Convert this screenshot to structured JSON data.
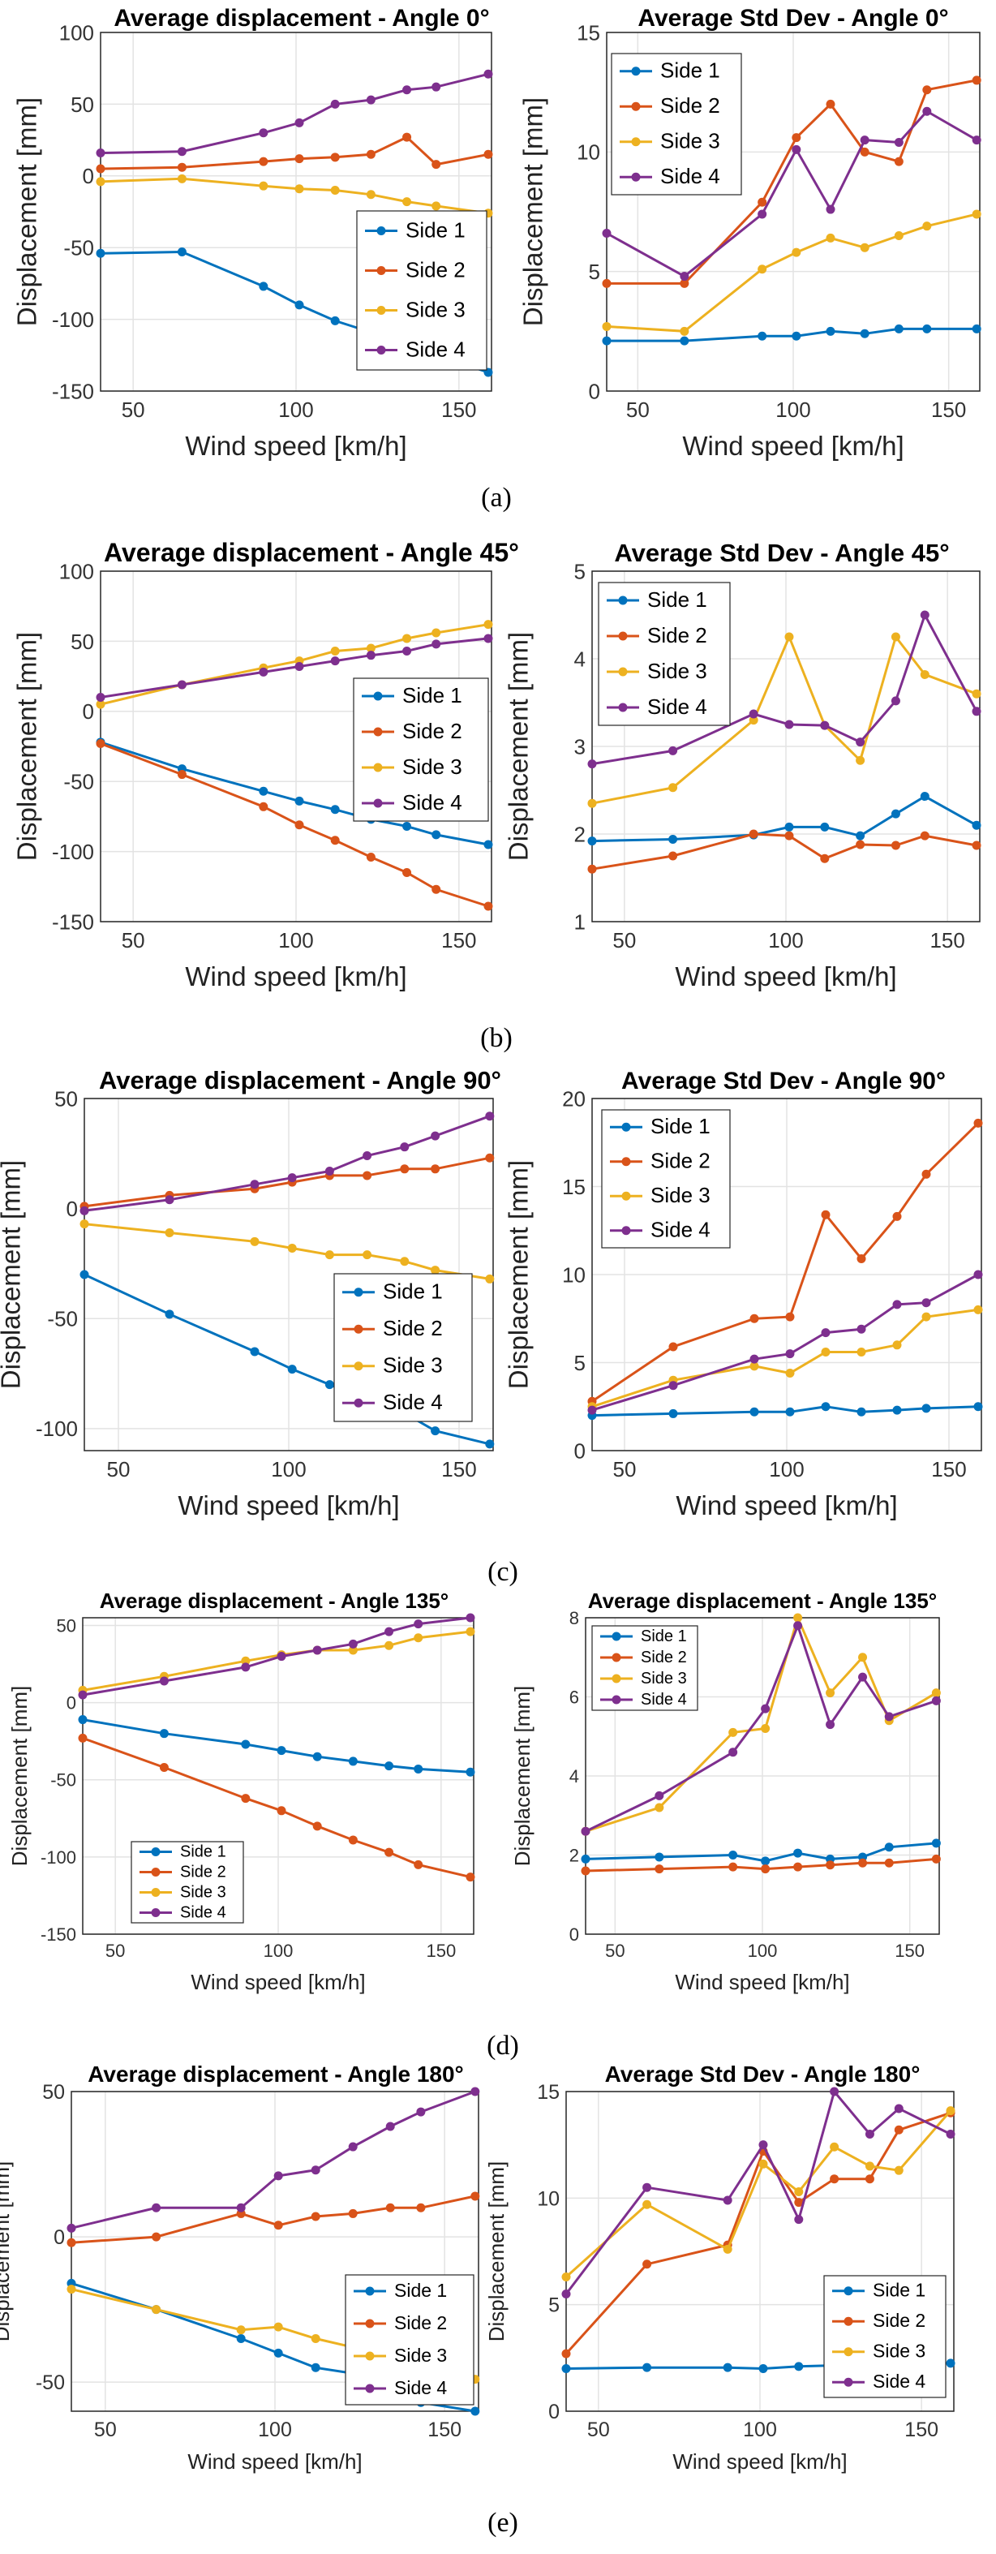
{
  "colors": {
    "Side 1": "#0072BD",
    "Side 2": "#D95319",
    "Side 3": "#EDB120",
    "Side 4": "#7E2F8E"
  },
  "captions": [
    "(a)",
    "(b)",
    "(c)",
    "(d)",
    "(e)"
  ],
  "chart_data": [
    {
      "type": "line",
      "title": "Average displacement - Angle 0°",
      "xlabel": "Wind speed [km/h]",
      "ylabel": "Displacement [mm]",
      "xlim": [
        40,
        160
      ],
      "ylim": [
        -150,
        100
      ],
      "xticks": [
        50,
        100,
        150
      ],
      "yticks": [
        -150,
        -100,
        -50,
        0,
        50,
        100
      ],
      "legend_position": "bottom-right",
      "grid": true,
      "x": [
        40,
        65,
        90,
        101,
        112,
        123,
        134,
        143,
        159
      ],
      "series": [
        {
          "name": "Side 1",
          "values": [
            -54,
            -53,
            -77,
            -90,
            -101,
            -109,
            -116,
            -125,
            -137
          ]
        },
        {
          "name": "Side 2",
          "values": [
            5,
            6,
            10,
            12,
            13,
            15,
            27,
            8,
            15
          ]
        },
        {
          "name": "Side 3",
          "values": [
            -4,
            -2,
            -7,
            -9,
            -10,
            -13,
            -18,
            -21,
            -26
          ]
        },
        {
          "name": "Side 4",
          "values": [
            16,
            17,
            30,
            37,
            50,
            53,
            60,
            62,
            71
          ]
        }
      ]
    },
    {
      "type": "line",
      "title": "Average Std Dev - Angle 0°",
      "xlabel": "Wind speed [km/h]",
      "ylabel": "Displacement [mm]",
      "xlim": [
        40,
        160
      ],
      "ylim": [
        0,
        15
      ],
      "xticks": [
        50,
        100,
        150
      ],
      "yticks": [
        0,
        5,
        10,
        15
      ],
      "legend_position": "top-left",
      "grid": true,
      "x": [
        40,
        65,
        90,
        101,
        112,
        123,
        134,
        143,
        159
      ],
      "series": [
        {
          "name": "Side 1",
          "values": [
            2.1,
            2.1,
            2.3,
            2.3,
            2.5,
            2.4,
            2.6,
            2.6,
            2.6
          ]
        },
        {
          "name": "Side 2",
          "values": [
            4.5,
            4.5,
            7.9,
            10.6,
            12,
            10,
            9.6,
            12.6,
            13
          ]
        },
        {
          "name": "Side 3",
          "values": [
            2.7,
            2.5,
            5.1,
            5.8,
            6.4,
            6,
            6.5,
            6.9,
            7.4
          ]
        },
        {
          "name": "Side 4",
          "values": [
            6.6,
            4.8,
            7.4,
            10.1,
            7.6,
            10.5,
            10.4,
            11.7,
            10.5
          ]
        }
      ]
    },
    {
      "type": "line",
      "title": "Average displacement - Angle 45°",
      "xlabel": "Wind speed [km/h]",
      "ylabel": "Displacement [mm]",
      "xlim": [
        40,
        160
      ],
      "ylim": [
        -150,
        100
      ],
      "xticks": [
        50,
        100,
        150
      ],
      "yticks": [
        -150,
        -100,
        -50,
        0,
        50,
        100
      ],
      "legend_position": "center-right",
      "grid": true,
      "x": [
        40,
        65,
        90,
        101,
        112,
        123,
        134,
        143,
        159
      ],
      "series": [
        {
          "name": "Side 1",
          "values": [
            -22,
            -41,
            -57,
            -64,
            -70,
            -77,
            -82,
            -88,
            -95
          ]
        },
        {
          "name": "Side 2",
          "values": [
            -23,
            -45,
            -68,
            -81,
            -92,
            -104,
            -115,
            -127,
            -139
          ]
        },
        {
          "name": "Side 3",
          "values": [
            5,
            19,
            31,
            36,
            43,
            45,
            52,
            56,
            62
          ]
        },
        {
          "name": "Side 4",
          "values": [
            10,
            19,
            28,
            32,
            36,
            40,
            43,
            48,
            52
          ]
        }
      ]
    },
    {
      "type": "line",
      "title": "Average Std Dev - Angle 45°",
      "xlabel": "Wind speed [km/h]",
      "ylabel": "Displacement [mm]",
      "xlim": [
        40,
        160
      ],
      "ylim": [
        1,
        5
      ],
      "xticks": [
        50,
        100,
        150
      ],
      "yticks": [
        1,
        2,
        3,
        4,
        5
      ],
      "legend_position": "top-left",
      "grid": true,
      "x": [
        40,
        65,
        90,
        101,
        112,
        123,
        134,
        143,
        159
      ],
      "series": [
        {
          "name": "Side 1",
          "values": [
            1.92,
            1.94,
            1.99,
            2.08,
            2.08,
            1.98,
            2.23,
            2.43,
            2.1
          ]
        },
        {
          "name": "Side 2",
          "values": [
            1.6,
            1.75,
            2.0,
            1.98,
            1.72,
            1.88,
            1.87,
            1.98,
            1.87
          ]
        },
        {
          "name": "Side 3",
          "values": [
            2.35,
            2.53,
            3.3,
            4.25,
            3.24,
            2.84,
            4.25,
            3.82,
            3.6
          ]
        },
        {
          "name": "Side 4",
          "values": [
            2.8,
            2.95,
            3.37,
            3.25,
            3.24,
            3.05,
            3.52,
            4.5,
            3.4
          ]
        }
      ]
    },
    {
      "type": "line",
      "title": "Average displacement - Angle 90°",
      "xlabel": "Wind speed [km/h]",
      "ylabel": "Displacement [mm]",
      "xlim": [
        40,
        160
      ],
      "ylim": [
        -110,
        50
      ],
      "xticks": [
        50,
        100,
        150
      ],
      "yticks": [
        -100,
        -50,
        0,
        50
      ],
      "legend_position": "bottom-right",
      "grid": true,
      "x": [
        40,
        65,
        90,
        101,
        112,
        123,
        134,
        143,
        159
      ],
      "series": [
        {
          "name": "Side 1",
          "values": [
            -30,
            -48,
            -65,
            -73,
            -80,
            -87,
            -93,
            -101,
            -107
          ]
        },
        {
          "name": "Side 2",
          "values": [
            1,
            6,
            9,
            12,
            15,
            15,
            18,
            18,
            23
          ]
        },
        {
          "name": "Side 3",
          "values": [
            -7,
            -11,
            -15,
            -18,
            -21,
            -21,
            -24,
            -28,
            -32
          ]
        },
        {
          "name": "Side 4",
          "values": [
            -1,
            4,
            11,
            14,
            17,
            24,
            28,
            33,
            42
          ]
        }
      ]
    },
    {
      "type": "line",
      "title": "Average Std Dev - Angle 90°",
      "xlabel": "Wind speed [km/h]",
      "ylabel": "Displacement [mm]",
      "xlim": [
        40,
        160
      ],
      "ylim": [
        0,
        20
      ],
      "xticks": [
        50,
        100,
        150
      ],
      "yticks": [
        0,
        5,
        10,
        15,
        20
      ],
      "legend_position": "top-left",
      "grid": true,
      "x": [
        40,
        65,
        90,
        101,
        112,
        123,
        134,
        143,
        159
      ],
      "series": [
        {
          "name": "Side 1",
          "values": [
            2.0,
            2.1,
            2.2,
            2.2,
            2.5,
            2.2,
            2.3,
            2.4,
            2.5
          ]
        },
        {
          "name": "Side 2",
          "values": [
            2.8,
            5.9,
            7.5,
            7.6,
            13.4,
            10.9,
            13.3,
            15.7,
            18.6
          ]
        },
        {
          "name": "Side 3",
          "values": [
            2.5,
            4.0,
            4.8,
            4.4,
            5.6,
            5.6,
            6.0,
            7.6,
            8.0
          ]
        },
        {
          "name": "Side 4",
          "values": [
            2.3,
            3.7,
            5.2,
            5.5,
            6.7,
            6.9,
            8.3,
            8.4,
            10
          ]
        }
      ]
    },
    {
      "type": "line",
      "title": "Average displacement - Angle 135°",
      "xlabel": "Wind speed [km/h]",
      "ylabel": "Displacement [mm]",
      "xlim": [
        40,
        160
      ],
      "ylim": [
        -150,
        55
      ],
      "xticks": [
        50,
        100,
        150
      ],
      "yticks": [
        -150,
        -100,
        -50,
        0,
        50
      ],
      "legend_position": "bottom-left",
      "grid": true,
      "x": [
        40,
        65,
        90,
        101,
        112,
        123,
        134,
        143,
        159
      ],
      "series": [
        {
          "name": "Side 1",
          "values": [
            -11,
            -20,
            -27,
            -31,
            -35,
            -38,
            -41,
            -43,
            -45
          ]
        },
        {
          "name": "Side 2",
          "values": [
            -23,
            -42,
            -62,
            -70,
            -80,
            -89,
            -97,
            -105,
            -113
          ]
        },
        {
          "name": "Side 3",
          "values": [
            8,
            17,
            27,
            31,
            34,
            34,
            37,
            42,
            46
          ]
        },
        {
          "name": "Side 4",
          "values": [
            5,
            14,
            23,
            30,
            34,
            38,
            46,
            51,
            55
          ]
        }
      ]
    },
    {
      "type": "line",
      "title": "Average displacement - Angle 135°",
      "xlabel": "Wind speed [km/h]",
      "ylabel": "Displacement [mm]",
      "xlim": [
        40,
        160
      ],
      "ylim": [
        0,
        8
      ],
      "xticks": [
        50,
        100,
        150
      ],
      "yticks": [
        0,
        2,
        4,
        6,
        8
      ],
      "legend_position": "top-left",
      "grid": true,
      "x": [
        40,
        65,
        90,
        101,
        112,
        123,
        134,
        143,
        159
      ],
      "series": [
        {
          "name": "Side 1",
          "values": [
            1.9,
            1.95,
            2.0,
            1.85,
            2.05,
            1.9,
            1.95,
            2.2,
            2.3
          ]
        },
        {
          "name": "Side 2",
          "values": [
            1.6,
            1.65,
            1.7,
            1.65,
            1.7,
            1.75,
            1.8,
            1.8,
            1.9
          ]
        },
        {
          "name": "Side 3",
          "values": [
            2.6,
            3.2,
            5.1,
            5.2,
            8.0,
            6.1,
            7.0,
            5.4,
            6.1
          ]
        },
        {
          "name": "Side 4",
          "values": [
            2.6,
            3.5,
            4.6,
            5.7,
            7.8,
            5.3,
            6.5,
            5.5,
            5.9
          ]
        }
      ]
    },
    {
      "type": "line",
      "title": "Average displacement - Angle 180°",
      "xlabel": "Wind speed [km/h]",
      "ylabel": "Displacement [mm]",
      "xlim": [
        40,
        160
      ],
      "ylim": [
        -60,
        50
      ],
      "xticks": [
        50,
        100,
        150
      ],
      "yticks": [
        -50,
        0,
        50
      ],
      "legend_position": "bottom-right",
      "grid": true,
      "x": [
        40,
        65,
        90,
        101,
        112,
        123,
        134,
        143,
        159
      ],
      "series": [
        {
          "name": "Side 1",
          "values": [
            -16,
            -25,
            -35,
            -40,
            -45,
            -47,
            -53,
            -57,
            -60
          ]
        },
        {
          "name": "Side 2",
          "values": [
            -2,
            0,
            8,
            4,
            7,
            8,
            10,
            10,
            14
          ]
        },
        {
          "name": "Side 3",
          "values": [
            -18,
            -25,
            -32,
            -31,
            -35,
            -38,
            -42,
            -45,
            -49
          ]
        },
        {
          "name": "Side 4",
          "values": [
            3,
            10,
            10,
            21,
            23,
            31,
            38,
            43,
            50
          ]
        }
      ]
    },
    {
      "type": "line",
      "title": "Average Std Dev - Angle 180°",
      "xlabel": "Wind speed [km/h]",
      "ylabel": "Displacement [mm]",
      "xlim": [
        40,
        160
      ],
      "ylim": [
        0,
        15
      ],
      "xticks": [
        50,
        100,
        150
      ],
      "yticks": [
        0,
        5,
        10,
        15
      ],
      "legend_position": "bottom-right",
      "grid": true,
      "x": [
        40,
        65,
        90,
        101,
        112,
        123,
        134,
        143,
        159
      ],
      "series": [
        {
          "name": "Side 1",
          "values": [
            2.0,
            2.05,
            2.05,
            2.0,
            2.1,
            2.15,
            2.2,
            2.25,
            2.25
          ]
        },
        {
          "name": "Side 2",
          "values": [
            2.7,
            6.9,
            7.8,
            12.2,
            9.8,
            10.9,
            10.9,
            13.2,
            14.0
          ]
        },
        {
          "name": "Side 3",
          "values": [
            6.3,
            9.7,
            7.6,
            11.6,
            10.3,
            12.4,
            11.5,
            11.3,
            14.1
          ]
        },
        {
          "name": "Side 4",
          "values": [
            5.5,
            10.5,
            9.9,
            12.5,
            9.0,
            15.0,
            13.0,
            14.2,
            13.0
          ]
        }
      ]
    }
  ]
}
